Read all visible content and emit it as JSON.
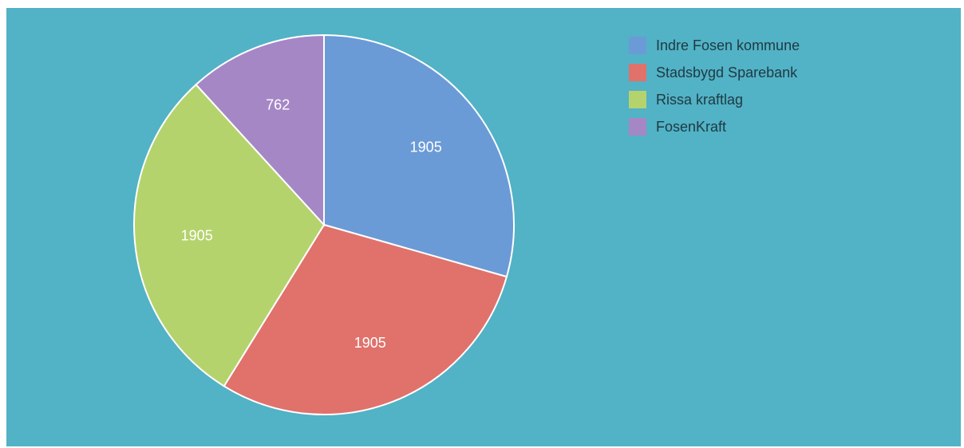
{
  "chart_data": {
    "type": "pie",
    "categories": [
      "Indre Fosen kommune",
      "Stadsbygd Sparebank",
      "Rissa kraftlag",
      "FosenKraft"
    ],
    "values": [
      1905,
      1905,
      1905,
      762
    ],
    "labels": [
      "1905",
      "1905",
      "1905",
      "762"
    ],
    "colors": [
      "#6b9bd6",
      "#e0726b",
      "#b5d36d",
      "#a587c6"
    ],
    "legend": "top-right",
    "title": ""
  },
  "style": {
    "panel_background": "#52b2c6",
    "slice_border": "#ffffff"
  }
}
